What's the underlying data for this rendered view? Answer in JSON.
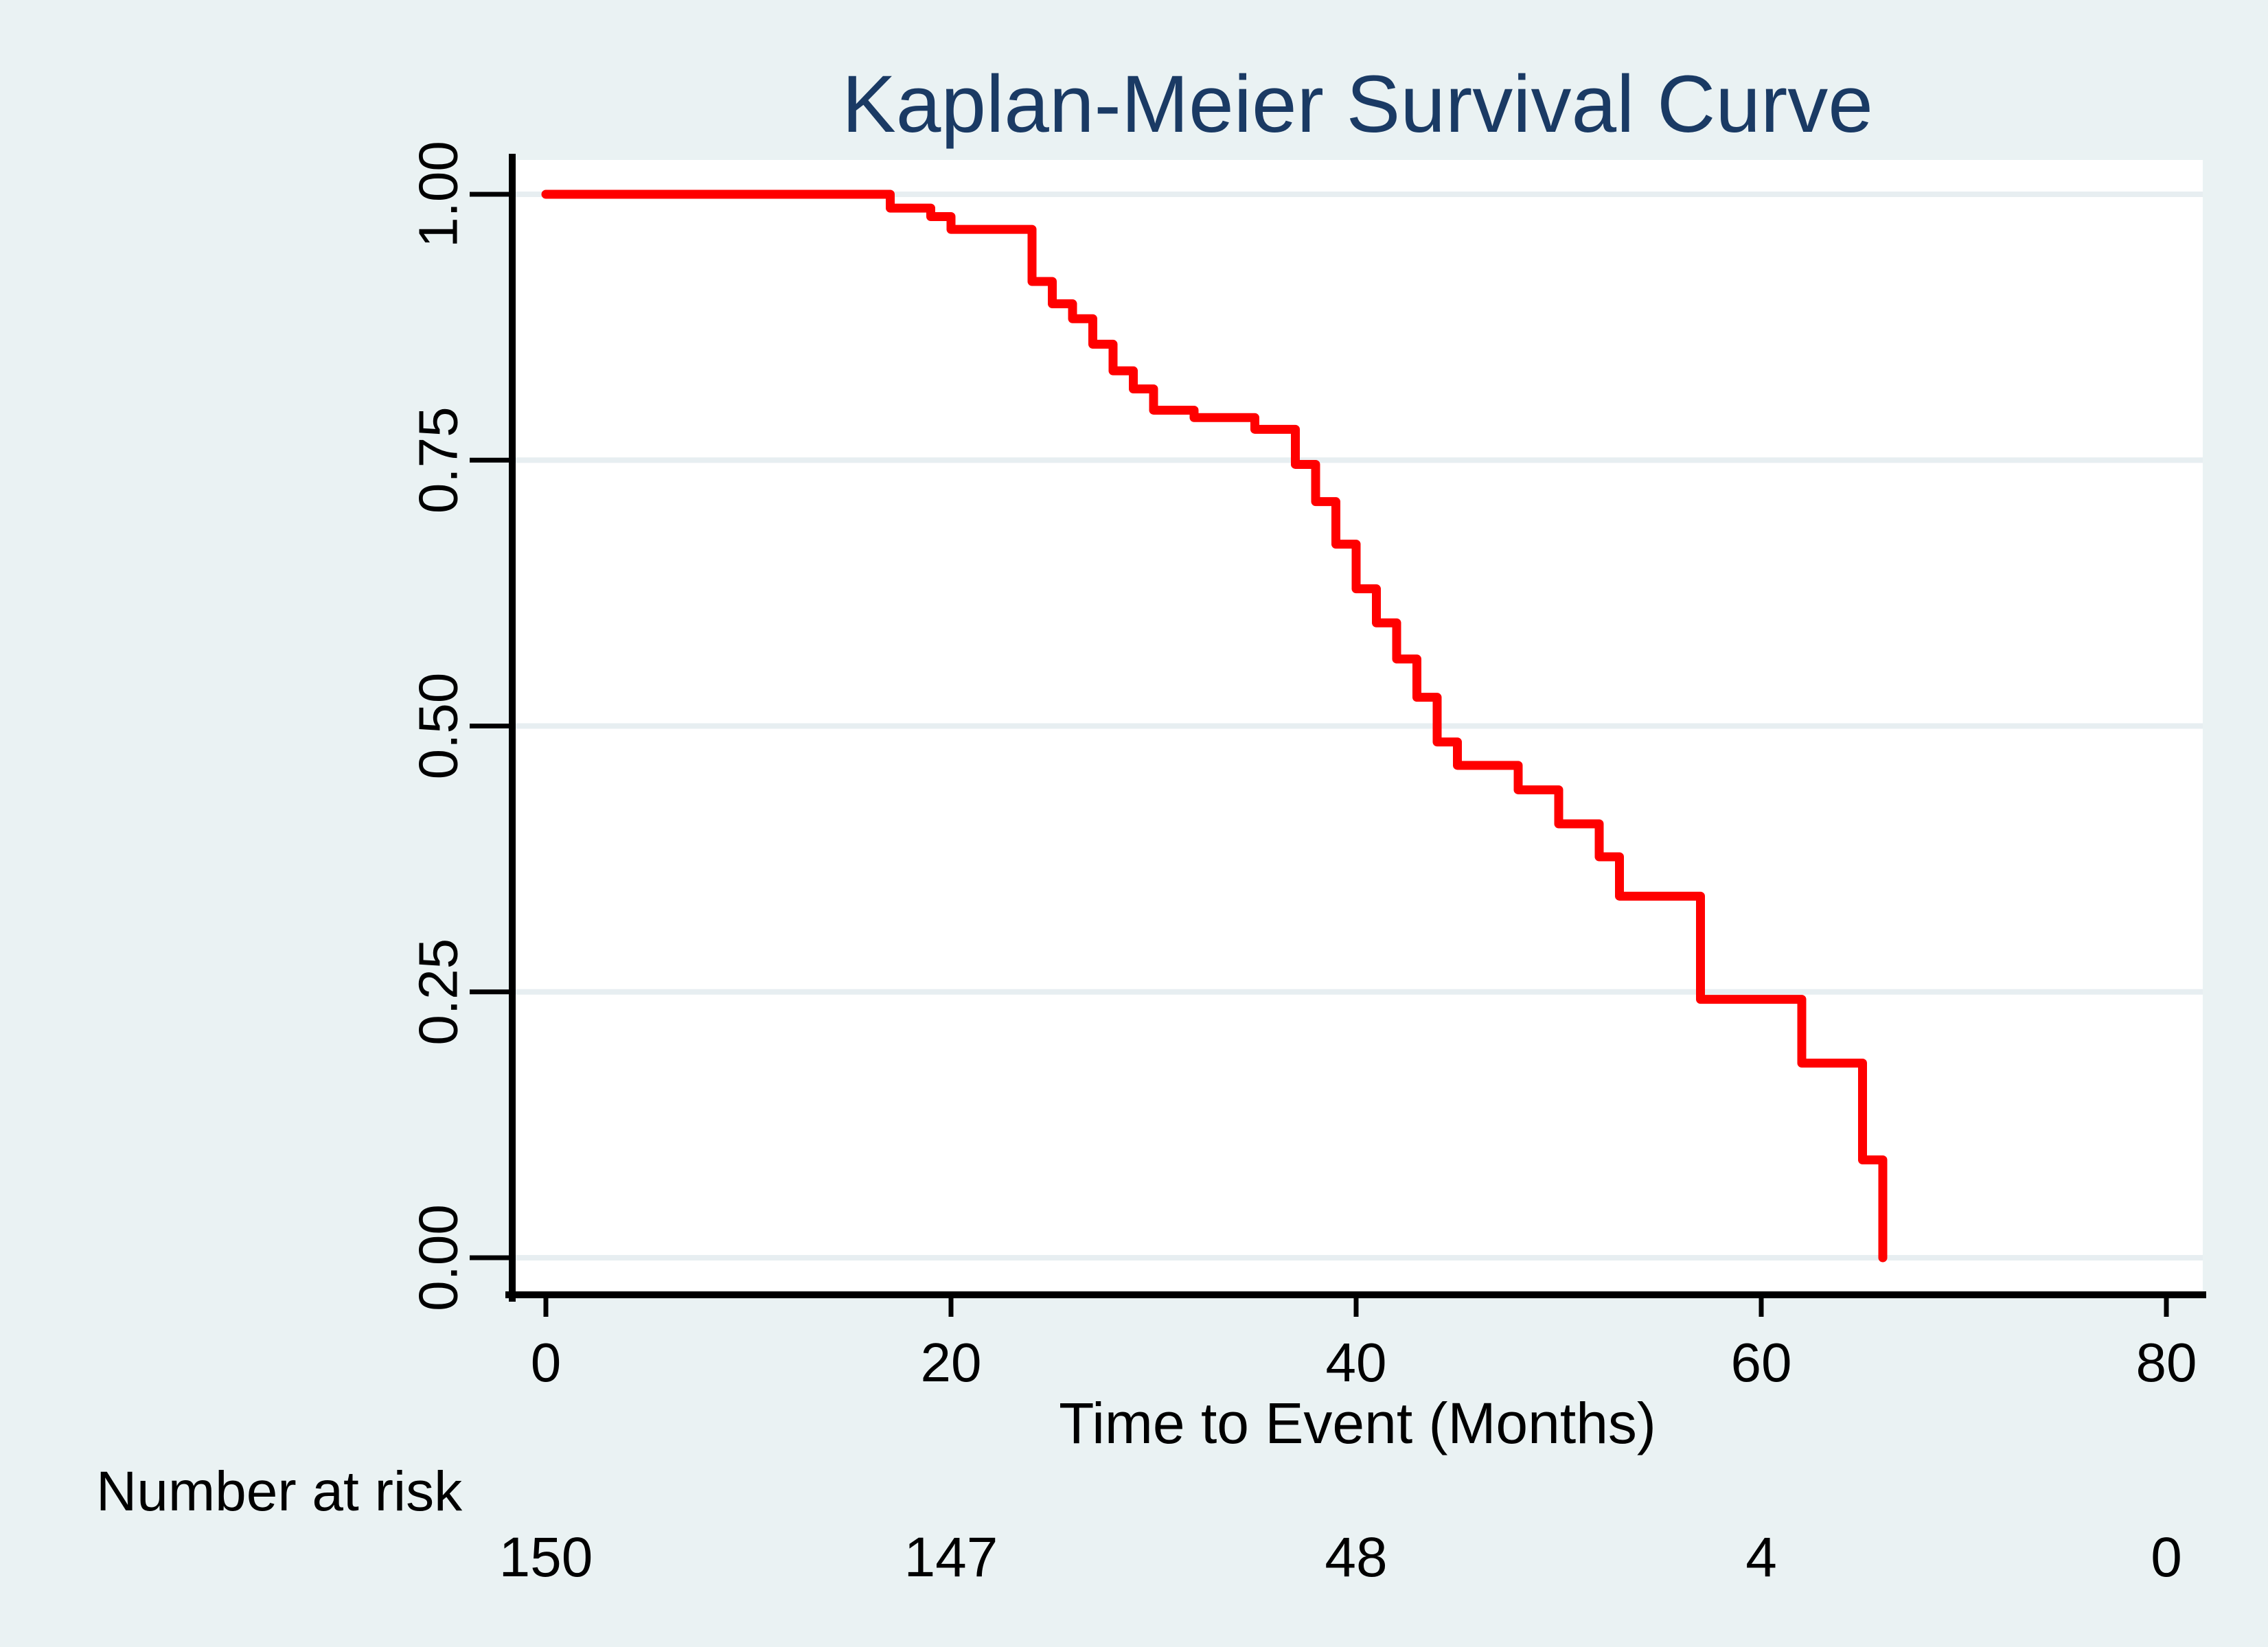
{
  "chart_data": {
    "type": "line",
    "variant": "kaplan_meier_step",
    "title": "Kaplan-Meier Survival Curve",
    "xlabel": "Time to Event (Months)",
    "ylabel": "",
    "xlim": [
      0,
      80
    ],
    "ylim": [
      0.0,
      1.0
    ],
    "grid": "horizontal",
    "legend": "none",
    "x_ticks": [
      0,
      20,
      40,
      60,
      80
    ],
    "x_tick_labels": [
      "0",
      "20",
      "40",
      "60",
      "80"
    ],
    "y_ticks": [
      1.0,
      0.75,
      0.5,
      0.25,
      0.0
    ],
    "y_tick_labels": [
      "1.00",
      "0.75",
      "0.50",
      "0.25",
      "0.00"
    ],
    "series": [
      {
        "name": "survival",
        "color": "#ff0000",
        "steps": [
          [
            0,
            1.0
          ],
          [
            17,
            0.987
          ],
          [
            19,
            0.979
          ],
          [
            20,
            0.967
          ],
          [
            24,
            0.918
          ],
          [
            25,
            0.897
          ],
          [
            26,
            0.883
          ],
          [
            27,
            0.859
          ],
          [
            28,
            0.834
          ],
          [
            29,
            0.817
          ],
          [
            30,
            0.797
          ],
          [
            32,
            0.79
          ],
          [
            35,
            0.779
          ],
          [
            37,
            0.746
          ],
          [
            38,
            0.711
          ],
          [
            39,
            0.671
          ],
          [
            40,
            0.629
          ],
          [
            41,
            0.597
          ],
          [
            42,
            0.563
          ],
          [
            43,
            0.527
          ],
          [
            44,
            0.485
          ],
          [
            45,
            0.463
          ],
          [
            48,
            0.44
          ],
          [
            50,
            0.408
          ],
          [
            52,
            0.377
          ],
          [
            53,
            0.34
          ],
          [
            57,
            0.243
          ],
          [
            62,
            0.183
          ],
          [
            65,
            0.092
          ],
          [
            66,
            0.0
          ]
        ]
      }
    ],
    "risk_table": {
      "label": "Number at risk",
      "times": [
        0,
        20,
        40,
        60,
        80
      ],
      "counts": [
        "150",
        "147",
        "48",
        "4",
        "0"
      ]
    }
  },
  "colors": {
    "background": "#eaf2f3",
    "plot_background": "#ffffff",
    "gridline": "#e7eef1",
    "axis": "#000000",
    "title": "#1a3a64",
    "curve": "#ff0000",
    "tick_label": "#000000"
  }
}
